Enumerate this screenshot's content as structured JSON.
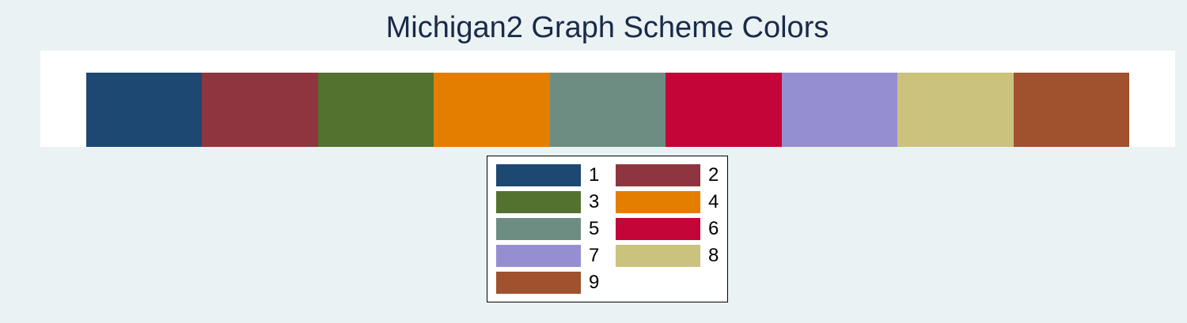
{
  "chart_data": {
    "type": "bar",
    "title": "Michigan2 Graph Scheme Colors",
    "categories": [
      "1",
      "2",
      "3",
      "4",
      "5",
      "6",
      "7",
      "8",
      "9"
    ],
    "values": [
      1,
      1,
      1,
      1,
      1,
      1,
      1,
      1,
      1
    ],
    "colors": [
      "#1c4872",
      "#8f353f",
      "#53722f",
      "#e47e00",
      "#6e8d82",
      "#c30537",
      "#958fd2",
      "#cbc27e",
      "#a0512d"
    ],
    "legend": {
      "placement": "bottom-center",
      "entries": [
        "1",
        "2",
        "3",
        "4",
        "5",
        "6",
        "7",
        "8",
        "9"
      ]
    },
    "grid": false
  }
}
